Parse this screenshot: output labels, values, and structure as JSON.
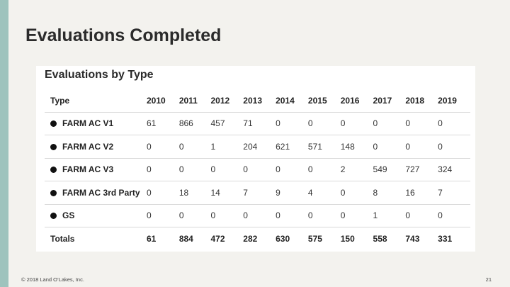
{
  "slide": {
    "title": "Evaluations Completed",
    "footer": "© 2018 Land O’Lakes, Inc.",
    "page_number": "21"
  },
  "panel": {
    "title": "Evaluations by Type"
  },
  "table": {
    "header": [
      "Type",
      "2010",
      "2011",
      "2012",
      "2013",
      "2014",
      "2015",
      "2016",
      "2017",
      "2018",
      "2019"
    ],
    "rows": [
      {
        "type": "FARM AC V1",
        "values": [
          "61",
          "866",
          "457",
          "71",
          "0",
          "0",
          "0",
          "0",
          "0",
          "0"
        ]
      },
      {
        "type": "FARM AC V2",
        "values": [
          "0",
          "0",
          "1",
          "204",
          "621",
          "571",
          "148",
          "0",
          "0",
          "0"
        ]
      },
      {
        "type": "FARM AC V3",
        "values": [
          "0",
          "0",
          "0",
          "0",
          "0",
          "0",
          "2",
          "549",
          "727",
          "324"
        ]
      },
      {
        "type": "FARM AC 3rd Party",
        "values": [
          "0",
          "18",
          "14",
          "7",
          "9",
          "4",
          "0",
          "8",
          "16",
          "7"
        ]
      },
      {
        "type": "GS",
        "values": [
          "0",
          "0",
          "0",
          "0",
          "0",
          "0",
          "0",
          "1",
          "0",
          "0"
        ]
      }
    ],
    "totals": {
      "label": "Totals",
      "values": [
        "61",
        "884",
        "472",
        "282",
        "630",
        "575",
        "150",
        "558",
        "743",
        "331"
      ]
    }
  },
  "colors": {
    "accent_bar": "#9ec3bd",
    "slide_background": "#f3f2ee",
    "panel_background": "#ffffff"
  }
}
